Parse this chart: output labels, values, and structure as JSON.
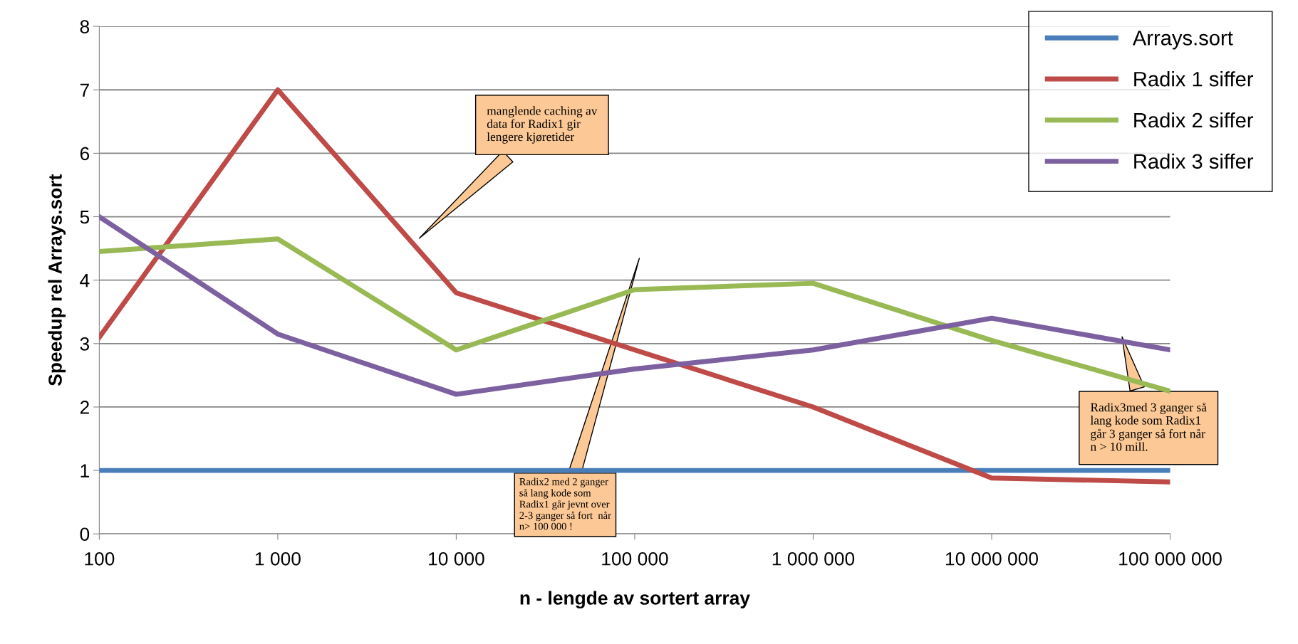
{
  "chart_data": {
    "type": "line",
    "categories": [
      "100",
      "1 000",
      "10 000",
      "100 000",
      "1 000 000",
      "10 000 000",
      "100 000 000"
    ],
    "series": [
      {
        "name": "Arrays.sort",
        "color": "#4a7ebb",
        "values": [
          1,
          1,
          1,
          1,
          1,
          1,
          1
        ]
      },
      {
        "name": "Radix 1 siffer",
        "color": "#be4b48",
        "values": [
          3.1,
          7.0,
          3.8,
          2.9,
          2.0,
          0.88,
          0.82
        ]
      },
      {
        "name": "Radix 2 siffer",
        "color": "#98b954",
        "values": [
          4.45,
          4.65,
          2.9,
          3.85,
          3.95,
          3.05,
          2.25
        ]
      },
      {
        "name": "Radix 3 siffer",
        "color": "#7d60a0",
        "values": [
          5.0,
          3.15,
          2.2,
          2.6,
          2.9,
          3.4,
          2.9
        ]
      }
    ],
    "ylabel": "Speedup rel Arrays.sort",
    "xlabel": "n - lengde av sortert array",
    "ylim": [
      0,
      8
    ],
    "yticks": [
      0,
      1,
      2,
      3,
      4,
      5,
      6,
      7,
      8
    ],
    "grid": "y",
    "legend": "top right",
    "marker": "none",
    "line_style": "solid",
    "annotations": [
      "manglende caching av\ndata for Radix1 gir\nlengere kjøretider",
      "Radix2 med 2 ganger\nså lang kode som\nRadix1 går jevnt over\n2-3 ganger så fort  når\nn> 100 000 !",
      "Radix3med 3 ganger så\nlang kode som Radix1\ngår 3 ganger så fort når\nn > 10 mill."
    ]
  }
}
